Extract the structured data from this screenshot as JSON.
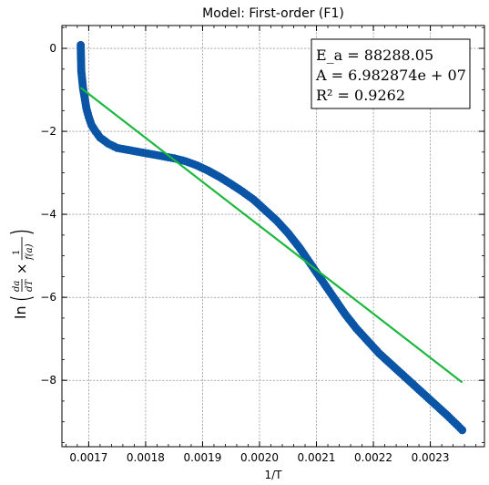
{
  "chart_data": {
    "type": "scatter",
    "title": "Model: First-order (F1)",
    "xlabel": "1/T",
    "ylabel": "ln(dα/dT × 1/f(α))",
    "xlim": [
      0.001653,
      0.002395
    ],
    "ylim": [
      -9.6,
      0.55
    ],
    "grid": true,
    "x_ticks": [
      0.0017,
      0.0018,
      0.0019,
      0.002,
      0.0021,
      0.0022,
      0.0023
    ],
    "x_tick_labels": [
      "0.0017",
      "0.0018",
      "0.0019",
      "0.0020",
      "0.0021",
      "0.0022",
      "0.0023"
    ],
    "y_ticks": [
      0,
      -2,
      -4,
      -6,
      -8
    ],
    "y_tick_labels": [
      "0",
      "−2",
      "−4",
      "−6",
      "−8"
    ],
    "colors": {
      "points": "#0a55a6",
      "fit": "#1bb83e"
    },
    "series": [
      {
        "kind": "points",
        "x": [
          0.001686,
          0.001687,
          0.00169,
          0.001693,
          0.001696,
          0.0017,
          0.001705,
          0.001712,
          0.00172,
          0.001735,
          0.00175,
          0.00177,
          0.00179,
          0.00181,
          0.00183,
          0.00185,
          0.00187,
          0.00189,
          0.00191,
          0.00193,
          0.00195,
          0.00197,
          0.00199,
          0.00201,
          0.00203,
          0.00205,
          0.00207,
          0.00209,
          0.00211,
          0.00213,
          0.00215,
          0.00217,
          0.00219,
          0.00221,
          0.00223,
          0.00225,
          0.00227,
          0.00229,
          0.00231,
          0.00233,
          0.002345,
          0.002356
        ],
        "y": [
          0.08,
          -0.55,
          -0.95,
          -1.2,
          -1.45,
          -1.65,
          -1.85,
          -2.0,
          -2.15,
          -2.3,
          -2.4,
          -2.45,
          -2.5,
          -2.55,
          -2.6,
          -2.65,
          -2.72,
          -2.82,
          -2.95,
          -3.1,
          -3.27,
          -3.45,
          -3.65,
          -3.9,
          -4.15,
          -4.45,
          -4.8,
          -5.2,
          -5.6,
          -6.0,
          -6.4,
          -6.75,
          -7.05,
          -7.35,
          -7.6,
          -7.85,
          -8.1,
          -8.35,
          -8.6,
          -8.85,
          -9.05,
          -9.2
        ]
      },
      {
        "kind": "fit-line",
        "x": [
          0.001686,
          0.002356
        ],
        "y": [
          -0.95,
          -8.05
        ]
      }
    ],
    "annotation": {
      "lines": [
        "E_a = 88288.05",
        "A = 6.982874e + 07",
        "R² = 0.9262"
      ]
    }
  }
}
